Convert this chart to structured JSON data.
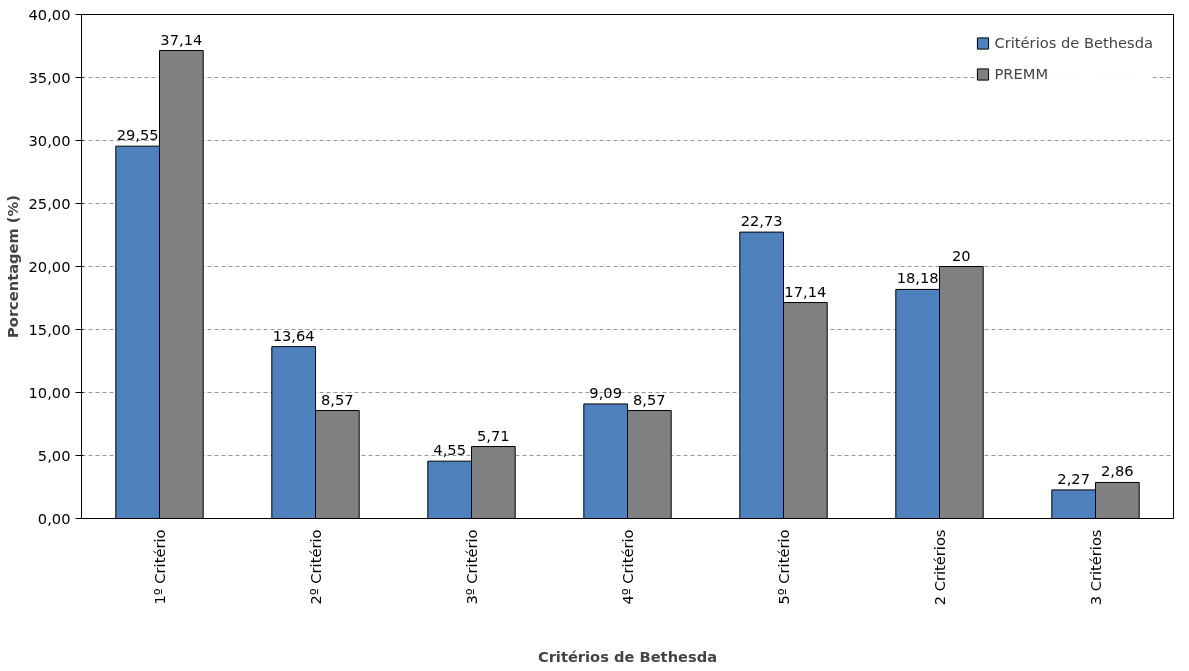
{
  "chart_data": {
    "type": "bar",
    "xlabel": "Critérios de Bethesda",
    "ylabel": "Porcentagem (%)",
    "categories": [
      "1º Critério",
      "2º Critério",
      "3º Critério",
      "4º Critério",
      "5º Critério",
      "2 Critérios",
      "3 Critérios"
    ],
    "series": [
      {
        "name": "Critérios de Bethesda",
        "color": "#4f81bd",
        "values": [
          29.55,
          13.64,
          4.55,
          9.09,
          22.73,
          18.18,
          2.27
        ],
        "value_labels": [
          "29,55",
          "13,64",
          "4,55",
          "9,09",
          "22,73",
          "18,18",
          "2,27"
        ]
      },
      {
        "name": "PREMM",
        "color": "#808080",
        "values": [
          37.14,
          8.57,
          5.71,
          8.57,
          17.14,
          20,
          2.86
        ],
        "value_labels": [
          "37,14",
          "8,57",
          "5,71",
          "8,57",
          "17,14",
          "20",
          "2,86"
        ]
      }
    ],
    "ylim": [
      0,
      40
    ],
    "yticks": [
      {
        "value": 0,
        "label": "0,00"
      },
      {
        "value": 5,
        "label": "5,00"
      },
      {
        "value": 10,
        "label": "10,00"
      },
      {
        "value": 15,
        "label": "15,00"
      },
      {
        "value": 20,
        "label": "20,00"
      },
      {
        "value": 25,
        "label": "25,00"
      },
      {
        "value": 30,
        "label": "30,00"
      },
      {
        "value": 35,
        "label": "35,00"
      },
      {
        "value": 40,
        "label": "40,00"
      }
    ],
    "grid": "y",
    "legend": "top right"
  }
}
